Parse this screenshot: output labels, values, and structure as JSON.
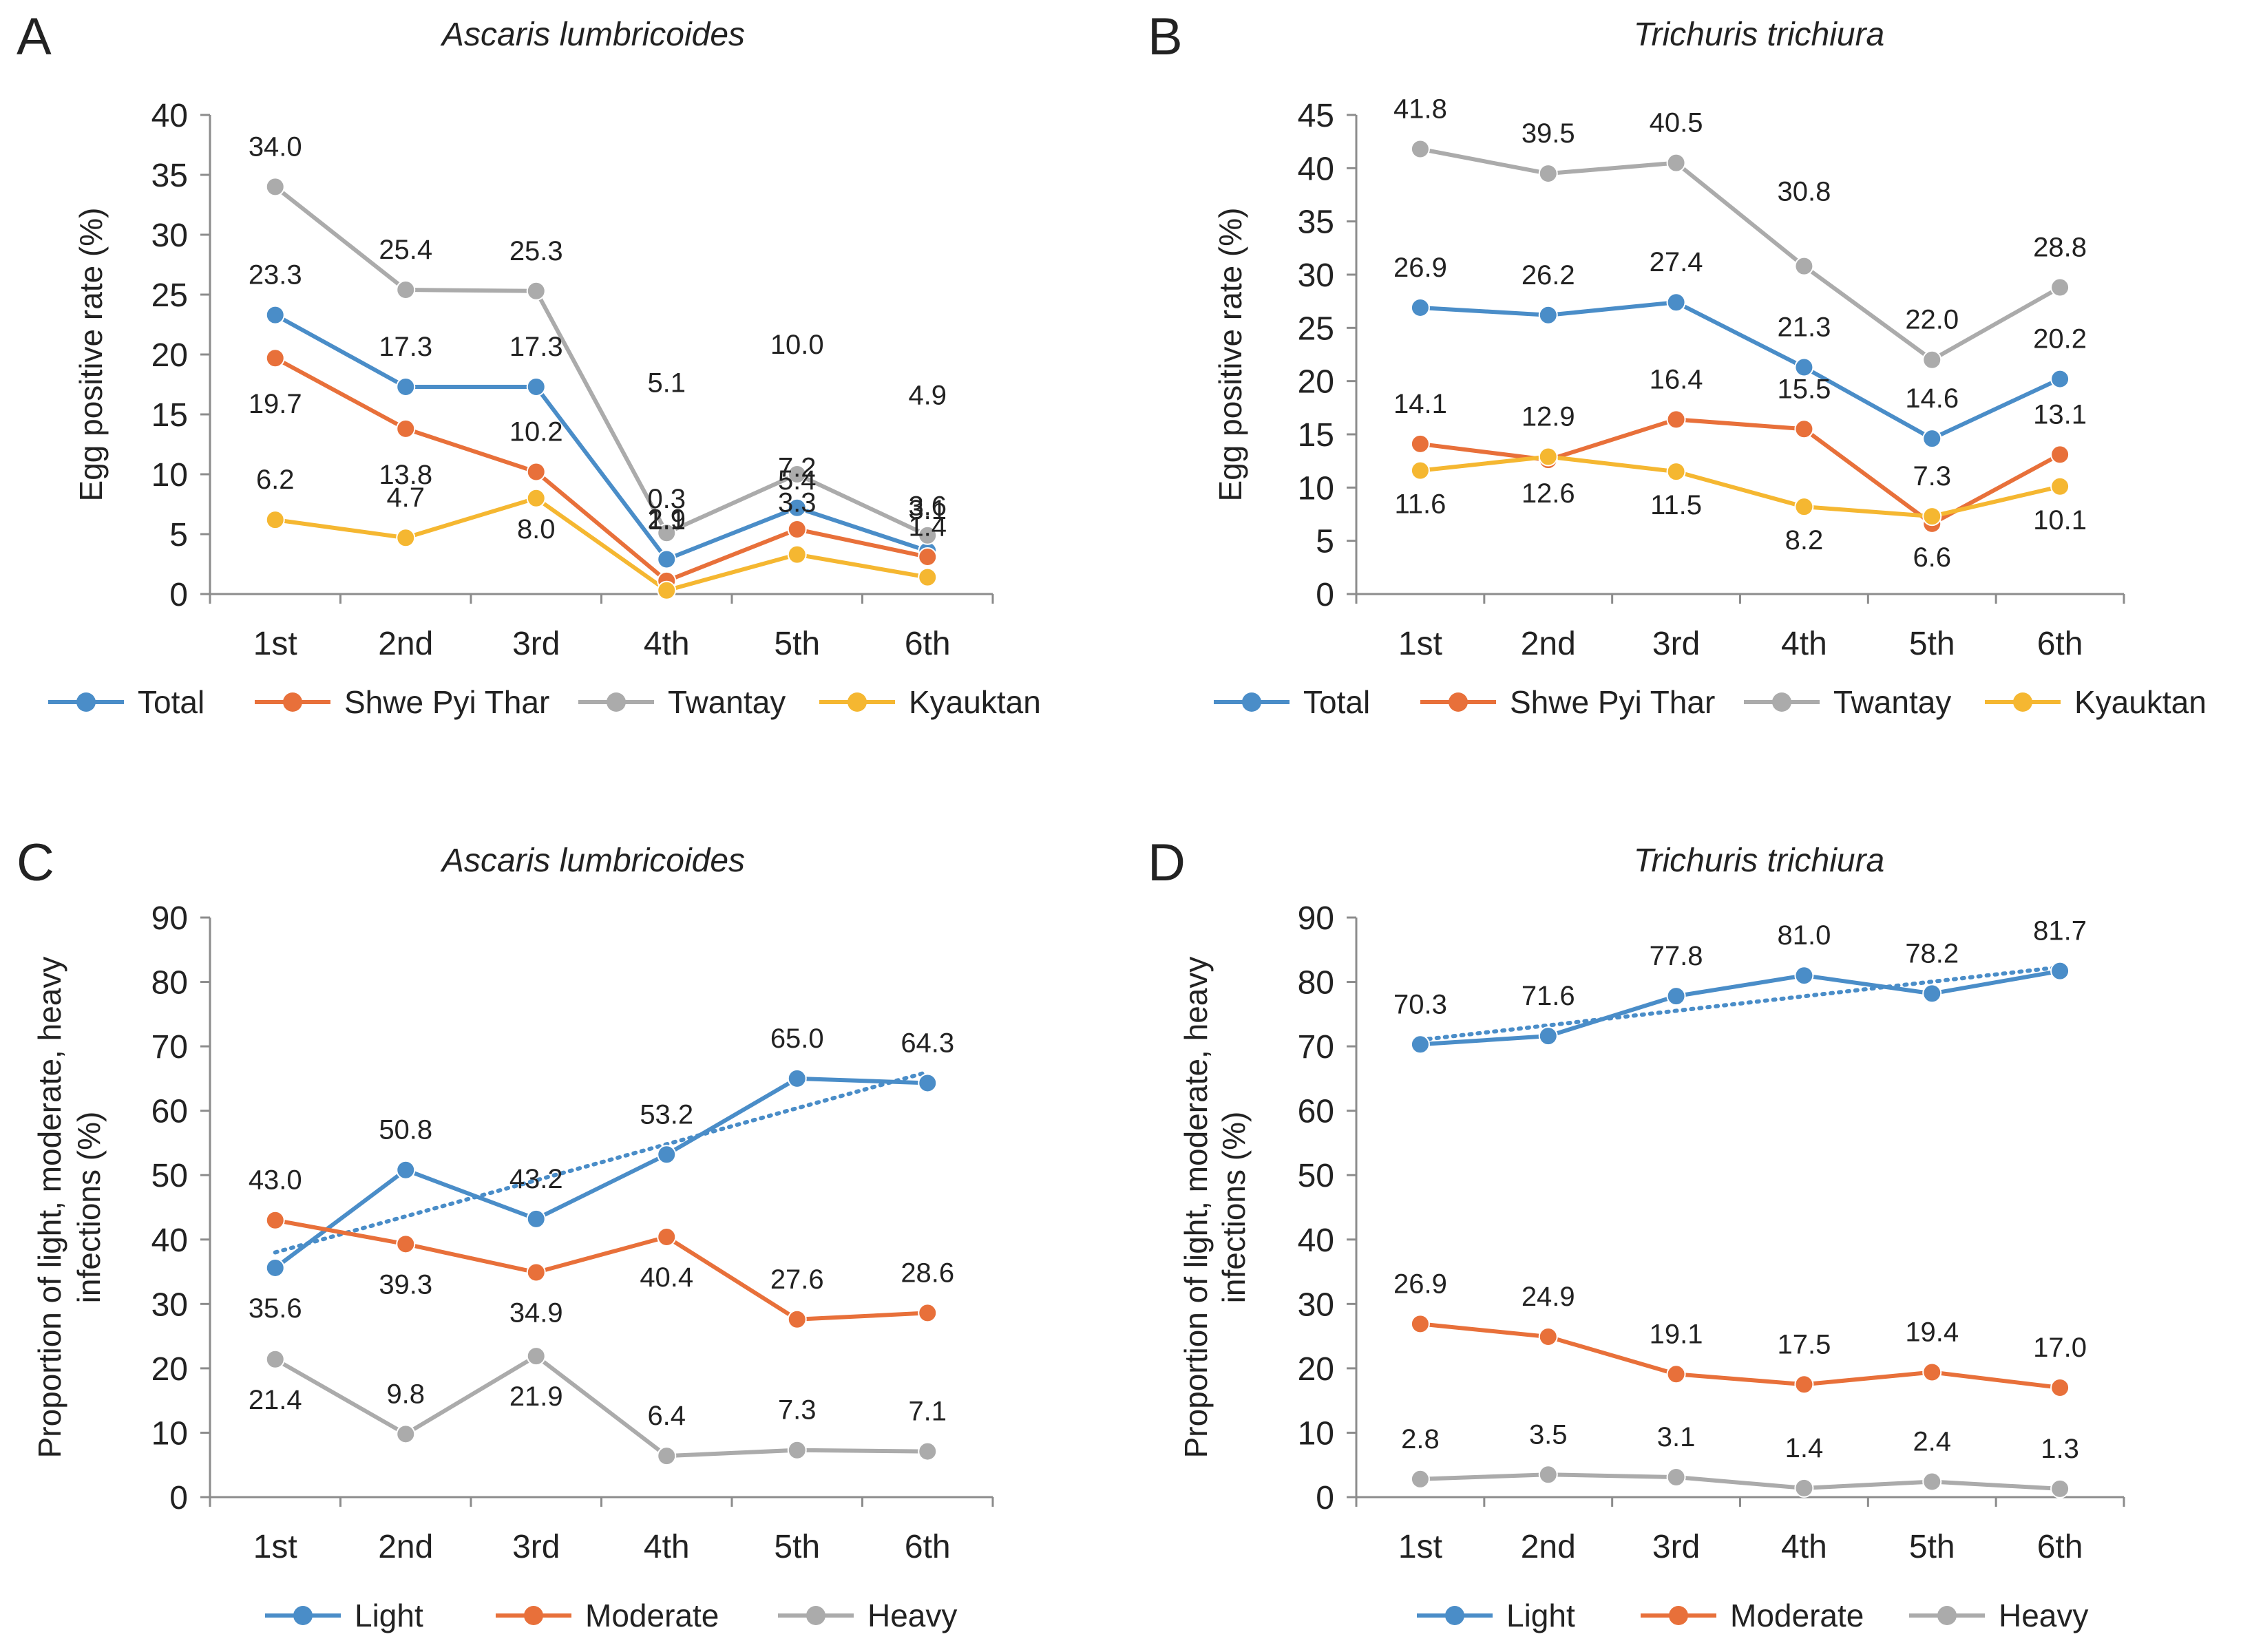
{
  "chart_data": [
    {
      "panel": "A",
      "type": "line",
      "title": "Ascaris lumbricoides",
      "ylabel": "Egg positive rate (%)",
      "xlabel": "",
      "ylim": [
        0,
        40
      ],
      "yticks": [
        0,
        5,
        10,
        15,
        20,
        25,
        30,
        35,
        40
      ],
      "categories": [
        "1st",
        "2nd",
        "3rd",
        "4th",
        "5th",
        "6th"
      ],
      "legend_position": "bottom",
      "series": [
        {
          "name": "Total",
          "color": "#4A8DC8",
          "values": [
            23.3,
            17.3,
            17.3,
            2.9,
            7.2,
            3.6
          ],
          "labels": [
            "23.3",
            "17.3",
            "17.3",
            "2.9",
            "7.2",
            "3.6"
          ]
        },
        {
          "name": "Shwe Pyi Thar",
          "color": "#E8703A",
          "values": [
            19.7,
            13.8,
            10.2,
            1.1,
            5.4,
            3.1
          ],
          "labels": [
            "19.7",
            "13.8",
            "10.2",
            "1.1",
            "5.4",
            "3.1"
          ]
        },
        {
          "name": "Twantay",
          "color": "#ABABAB",
          "values": [
            34.0,
            25.4,
            25.3,
            5.1,
            10.0,
            4.9
          ],
          "labels": [
            "34.0",
            "25.4",
            "25.3",
            "5.1",
            "10.0",
            "4.9"
          ]
        },
        {
          "name": "Kyauktan",
          "color": "#F5B731",
          "values": [
            6.2,
            4.7,
            8.0,
            0.3,
            3.3,
            1.4
          ],
          "labels": [
            "6.2",
            "4.7",
            "8.0",
            "0.3",
            "3.3",
            "1.4"
          ]
        }
      ]
    },
    {
      "panel": "B",
      "type": "line",
      "title": "Trichuris trichiura",
      "ylabel": "Egg positive rate (%)",
      "xlabel": "",
      "ylim": [
        0,
        45
      ],
      "yticks": [
        0,
        5,
        10,
        15,
        20,
        25,
        30,
        35,
        40,
        45
      ],
      "categories": [
        "1st",
        "2nd",
        "3rd",
        "4th",
        "5th",
        "6th"
      ],
      "legend_position": "bottom",
      "series": [
        {
          "name": "Total",
          "color": "#4A8DC8",
          "values": [
            26.9,
            26.2,
            27.4,
            21.3,
            14.6,
            20.2
          ],
          "labels": [
            "26.9",
            "26.2",
            "27.4",
            "21.3",
            "14.6",
            "20.2"
          ]
        },
        {
          "name": "Shwe Pyi Thar",
          "color": "#E8703A",
          "values": [
            14.1,
            12.6,
            16.4,
            15.5,
            6.6,
            13.1
          ],
          "labels": [
            "14.1",
            "12.6",
            "16.4",
            "15.5",
            "6.6",
            "13.1"
          ]
        },
        {
          "name": "Twantay",
          "color": "#ABABAB",
          "values": [
            41.8,
            39.5,
            40.5,
            30.8,
            22.0,
            28.8
          ],
          "labels": [
            "41.8",
            "39.5",
            "40.5",
            "30.8",
            "22.0",
            "28.8"
          ]
        },
        {
          "name": "Kyauktan",
          "color": "#F5B731",
          "values": [
            11.6,
            12.9,
            11.5,
            8.2,
            7.3,
            10.1
          ],
          "labels": [
            "11.6",
            "12.9",
            "11.5",
            "8.2",
            "7.3",
            "10.1"
          ]
        }
      ]
    },
    {
      "panel": "C",
      "type": "line",
      "title": "Ascaris lumbricoides",
      "ylabel": "Proportion of light, moderate, heavy infections (%)",
      "ylabel_lines": [
        "Proportion of light, moderate, heavy",
        "infections (%)"
      ],
      "xlabel": "",
      "ylim": [
        0,
        90
      ],
      "yticks": [
        0,
        10,
        20,
        30,
        40,
        50,
        60,
        70,
        80,
        90
      ],
      "categories": [
        "1st",
        "2nd",
        "3rd",
        "4th",
        "5th",
        "6th"
      ],
      "legend_position": "bottom",
      "trendline": {
        "series": "Light",
        "style": "dotted",
        "start": 38.0,
        "end": 66.0
      },
      "series": [
        {
          "name": "Light",
          "color": "#4A8DC8",
          "values": [
            35.6,
            50.8,
            43.2,
            53.2,
            65.0,
            64.3
          ],
          "labels": [
            "35.6",
            "50.8",
            "43.2",
            "53.2",
            "65.0",
            "64.3"
          ]
        },
        {
          "name": "Moderate",
          "color": "#E8703A",
          "values": [
            43.0,
            39.3,
            34.9,
            40.4,
            27.6,
            28.6
          ],
          "labels": [
            "43.0",
            "39.3",
            "34.9",
            "40.4",
            "27.6",
            "28.6"
          ]
        },
        {
          "name": "Heavy",
          "color": "#ABABAB",
          "values": [
            21.4,
            9.8,
            21.9,
            6.4,
            7.3,
            7.1
          ],
          "labels": [
            "21.4",
            "9.8",
            "21.9",
            "6.4",
            "7.3",
            "7.1"
          ]
        }
      ]
    },
    {
      "panel": "D",
      "type": "line",
      "title": "Trichuris trichiura",
      "ylabel": "Proportion of light, moderate, heavy infections (%)",
      "ylabel_lines": [
        "Proportion of light, moderate, heavy",
        "infections (%)"
      ],
      "xlabel": "",
      "ylim": [
        0,
        90
      ],
      "yticks": [
        0,
        10,
        20,
        30,
        40,
        50,
        60,
        70,
        80,
        90
      ],
      "categories": [
        "1st",
        "2nd",
        "3rd",
        "4th",
        "5th",
        "6th"
      ],
      "legend_position": "bottom",
      "trendline": {
        "series": "Light",
        "style": "dotted",
        "start": 71.0,
        "end": 82.3
      },
      "series": [
        {
          "name": "Light",
          "color": "#4A8DC8",
          "values": [
            70.3,
            71.6,
            77.8,
            81.0,
            78.2,
            81.7
          ],
          "labels": [
            "70.3",
            "71.6",
            "77.8",
            "81.0",
            "78.2",
            "81.7"
          ]
        },
        {
          "name": "Moderate",
          "color": "#E8703A",
          "values": [
            26.9,
            24.9,
            19.1,
            17.5,
            19.4,
            17.0
          ],
          "labels": [
            "26.9",
            "24.9",
            "19.1",
            "17.5",
            "19.4",
            "17.0"
          ]
        },
        {
          "name": "Heavy",
          "color": "#ABABAB",
          "values": [
            2.8,
            3.5,
            3.1,
            1.4,
            2.4,
            1.3
          ],
          "labels": [
            "2.8",
            "3.5",
            "3.1",
            "1.4",
            "2.4",
            "1.3"
          ]
        }
      ]
    }
  ]
}
